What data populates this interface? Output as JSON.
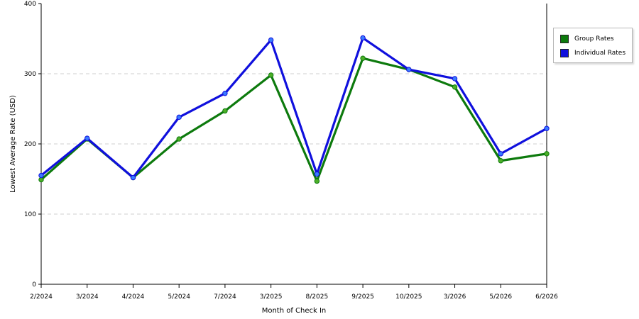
{
  "chart_data": {
    "type": "line",
    "title": "",
    "xlabel": "Month of Check In",
    "ylabel": "Lowest Average Rate (USD)",
    "ylim": [
      0,
      400
    ],
    "yticks": [
      "0",
      "100",
      "200",
      "300",
      "400"
    ],
    "categories": [
      "2/2024",
      "3/2024",
      "4/2024",
      "5/2024",
      "7/2024",
      "3/2025",
      "8/2025",
      "9/2025",
      "10/2025",
      "3/2026",
      "5/2026",
      "6/2026"
    ],
    "grid": true,
    "legend_position": "right",
    "series": [
      {
        "name": "Group Rates",
        "color": "#0d7a0d",
        "marker_color": "#4caf28",
        "values": [
          149,
          207,
          152,
          207,
          247,
          298,
          147,
          322,
          306,
          281,
          176,
          186
        ]
      },
      {
        "name": "Individual Rates",
        "color": "#1010dd",
        "marker_color": "#3a7bff",
        "values": [
          155,
          208,
          152,
          238,
          272,
          348,
          157,
          351,
          306,
          293,
          186,
          222
        ]
      }
    ]
  }
}
